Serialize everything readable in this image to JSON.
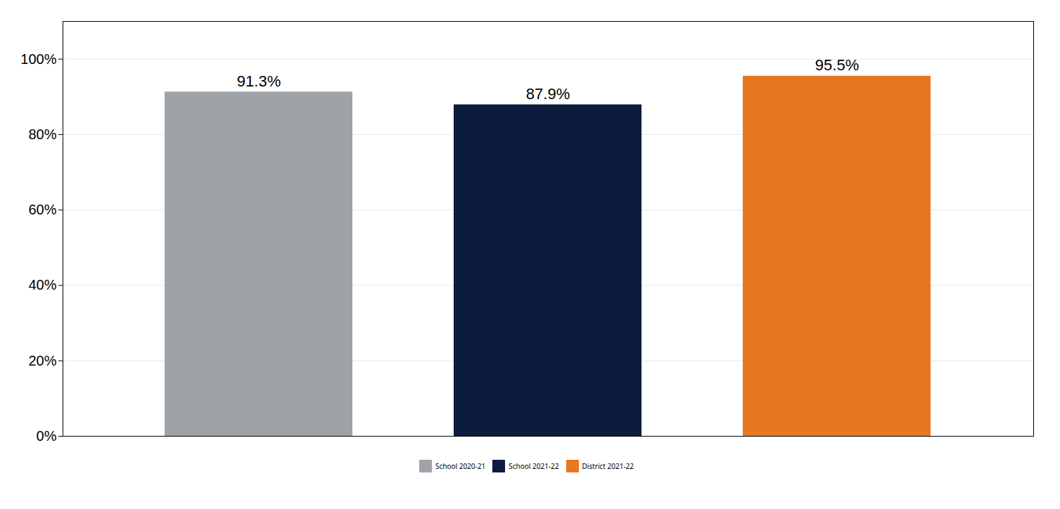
{
  "chart_data": {
    "type": "bar",
    "categories": [
      "School 2020-21",
      "School 2021-22",
      "District 2021-22"
    ],
    "values": [
      91.3,
      87.9,
      95.5
    ],
    "value_labels": [
      "91.3%",
      "87.9%",
      "95.5%"
    ],
    "colors": [
      "#9EA3A8",
      "#0D1B3E",
      "#E87722"
    ],
    "data_labels": true,
    "ylim": [
      0,
      110
    ],
    "yticks": [
      {
        "value": 0,
        "label": "0%"
      },
      {
        "value": 20,
        "label": "20%"
      },
      {
        "value": 40,
        "label": "40%"
      },
      {
        "value": 60,
        "label": "60%"
      },
      {
        "value": 80,
        "label": "80%"
      },
      {
        "value": 100,
        "label": "100%"
      }
    ],
    "grid": true,
    "legend": "bottom",
    "tick_labels": "y"
  }
}
